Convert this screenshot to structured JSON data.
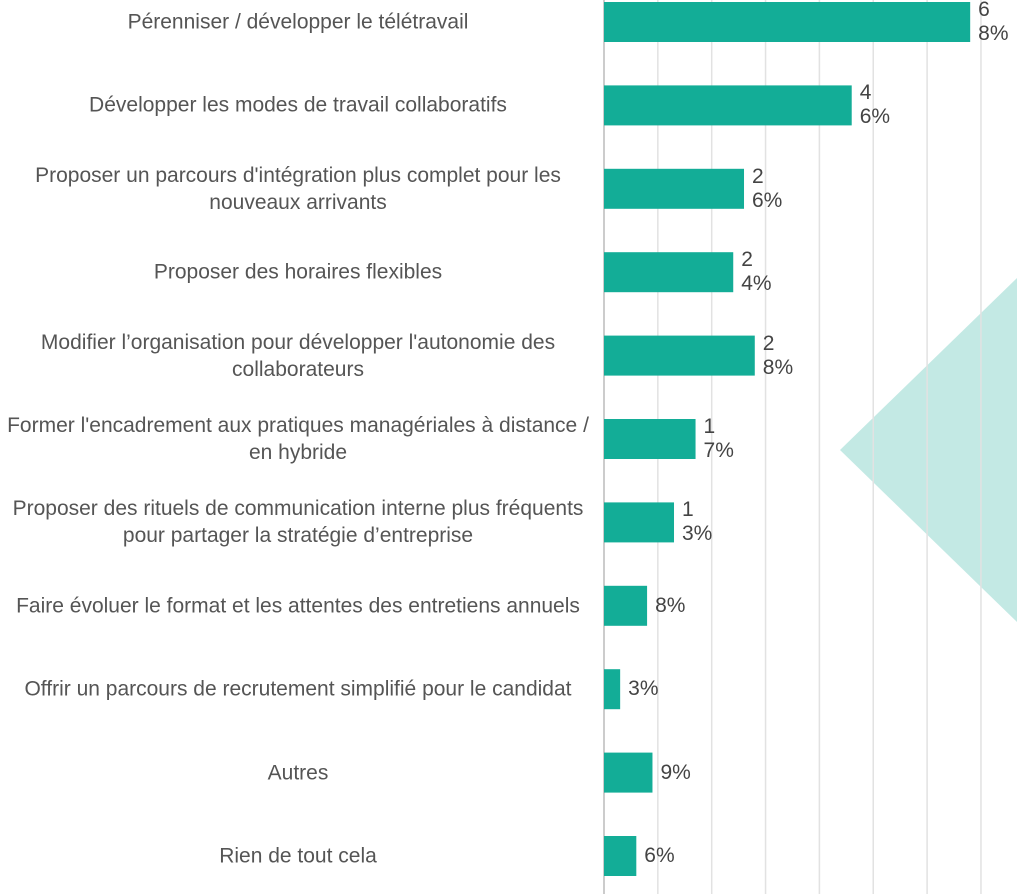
{
  "chart_data": {
    "type": "barh",
    "categories": [
      "Pérenniser / développer le télétravail",
      "Développer les modes de travail collaboratifs",
      "Proposer un parcours d'intégration plus complet pour les nouveaux arrivants",
      "Proposer des horaires flexibles",
      "Modifier l’organisation pour développer l'autonomie des collaborateurs",
      "Former l'encadrement aux pratiques managériales à distance / en hybride",
      "Proposer des rituels de communication interne plus fréquents pour partager la stratégie d’entreprise",
      "Faire évoluer le format et les attentes des entretiens annuels",
      "Offrir un parcours de recrutement simplifié pour le candidat",
      "Autres",
      "Rien de tout cela"
    ],
    "values": [
      68,
      46,
      26,
      24,
      28,
      17,
      13,
      8,
      3,
      9,
      6
    ],
    "value_labels": [
      "68%",
      "46%",
      "26%",
      "24%",
      "28%",
      "17%",
      "13%",
      "8%",
      "3%",
      "9%",
      "6%"
    ],
    "color": "#13ad97",
    "xlim": [
      0,
      75
    ],
    "xticks": [
      0,
      10,
      20,
      30,
      40,
      50,
      60,
      70
    ],
    "grid": true
  }
}
